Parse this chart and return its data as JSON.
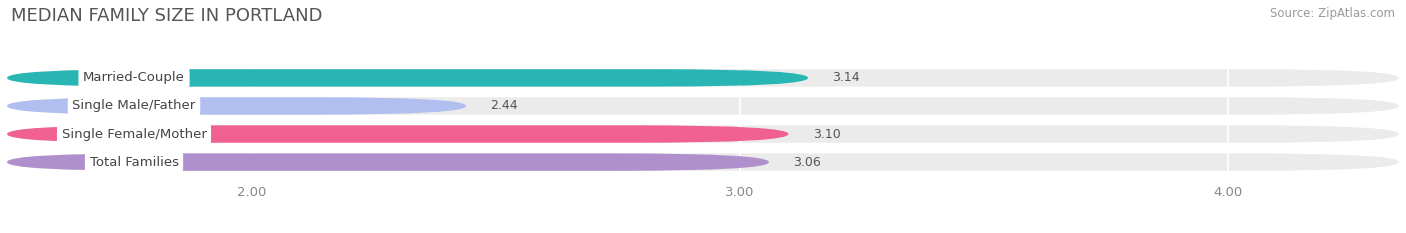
{
  "title": "MEDIAN FAMILY SIZE IN PORTLAND",
  "source": "Source: ZipAtlas.com",
  "categories": [
    "Married-Couple",
    "Single Male/Father",
    "Single Female/Mother",
    "Total Families"
  ],
  "values": [
    3.14,
    2.44,
    3.1,
    3.06
  ],
  "colors": [
    "#2ab5b5",
    "#b0bef0",
    "#f06090",
    "#b090cc"
  ],
  "bar_height": 0.62,
  "xlim_min": 1.5,
  "xlim_max": 4.35,
  "xticks": [
    2.0,
    3.0,
    4.0
  ],
  "xtick_labels": [
    "2.00",
    "3.00",
    "4.00"
  ],
  "background_color": "#ffffff",
  "bar_bg_color": "#ebebeb",
  "title_fontsize": 13,
  "label_fontsize": 9.5,
  "value_fontsize": 9,
  "source_fontsize": 8.5
}
